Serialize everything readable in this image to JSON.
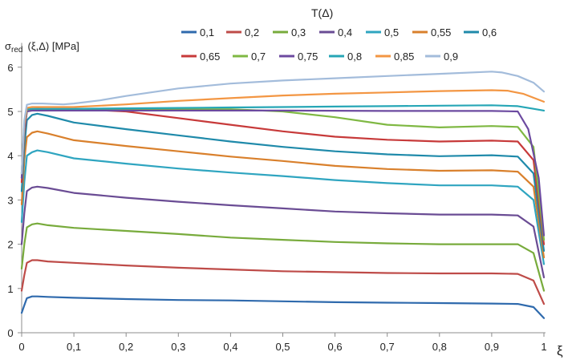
{
  "chart_data": {
    "type": "line",
    "legend_title": "T(Δ)",
    "ylabel_symbol": "σ",
    "ylabel_subscript": "red",
    "ylabel_rest": "(ξ,Δ) [MPa]",
    "xlabel": "ξ",
    "xlim": [
      0,
      1
    ],
    "ylim": [
      0,
      6.5
    ],
    "x_ticks": [
      "0",
      "0,1",
      "0,2",
      "0,3",
      "0,4",
      "0,5",
      "0,6",
      "0,7",
      "0,8",
      "0,9",
      "1"
    ],
    "y_ticks": [
      "0",
      "1",
      "2",
      "3",
      "4",
      "5",
      "6"
    ],
    "grid": "none",
    "legend_position": "top",
    "series": [
      {
        "name": "0,1",
        "color": "#2f6aad",
        "points": [
          [
            0,
            0.45
          ],
          [
            0.005,
            0.62
          ],
          [
            0.01,
            0.78
          ],
          [
            0.02,
            0.82
          ],
          [
            0.03,
            0.82
          ],
          [
            0.05,
            0.81
          ],
          [
            0.1,
            0.79
          ],
          [
            0.2,
            0.76
          ],
          [
            0.3,
            0.74
          ],
          [
            0.4,
            0.73
          ],
          [
            0.5,
            0.71
          ],
          [
            0.6,
            0.69
          ],
          [
            0.7,
            0.68
          ],
          [
            0.8,
            0.67
          ],
          [
            0.9,
            0.66
          ],
          [
            0.95,
            0.65
          ],
          [
            0.98,
            0.58
          ],
          [
            1,
            0.33
          ]
        ]
      },
      {
        "name": "0,2",
        "color": "#be4b48",
        "points": [
          [
            0,
            0.95
          ],
          [
            0.005,
            1.3
          ],
          [
            0.01,
            1.58
          ],
          [
            0.02,
            1.64
          ],
          [
            0.03,
            1.64
          ],
          [
            0.05,
            1.61
          ],
          [
            0.1,
            1.58
          ],
          [
            0.2,
            1.52
          ],
          [
            0.3,
            1.47
          ],
          [
            0.4,
            1.43
          ],
          [
            0.5,
            1.39
          ],
          [
            0.6,
            1.37
          ],
          [
            0.7,
            1.35
          ],
          [
            0.8,
            1.34
          ],
          [
            0.9,
            1.34
          ],
          [
            0.95,
            1.33
          ],
          [
            0.98,
            1.18
          ],
          [
            1,
            0.65
          ]
        ]
      },
      {
        "name": "0,3",
        "color": "#78ab3c",
        "points": [
          [
            0,
            1.45
          ],
          [
            0.005,
            2.0
          ],
          [
            0.01,
            2.38
          ],
          [
            0.02,
            2.45
          ],
          [
            0.03,
            2.47
          ],
          [
            0.05,
            2.43
          ],
          [
            0.1,
            2.37
          ],
          [
            0.2,
            2.3
          ],
          [
            0.3,
            2.23
          ],
          [
            0.4,
            2.15
          ],
          [
            0.5,
            2.1
          ],
          [
            0.6,
            2.05
          ],
          [
            0.7,
            2.02
          ],
          [
            0.8,
            2.0
          ],
          [
            0.9,
            2.0
          ],
          [
            0.95,
            2.0
          ],
          [
            0.98,
            1.8
          ],
          [
            1,
            0.95
          ]
        ]
      },
      {
        "name": "0,4",
        "color": "#6a4c94",
        "points": [
          [
            0,
            2.0
          ],
          [
            0.005,
            2.7
          ],
          [
            0.01,
            3.2
          ],
          [
            0.02,
            3.28
          ],
          [
            0.03,
            3.3
          ],
          [
            0.05,
            3.27
          ],
          [
            0.1,
            3.16
          ],
          [
            0.2,
            3.05
          ],
          [
            0.3,
            2.96
          ],
          [
            0.4,
            2.88
          ],
          [
            0.5,
            2.81
          ],
          [
            0.6,
            2.74
          ],
          [
            0.7,
            2.7
          ],
          [
            0.8,
            2.67
          ],
          [
            0.9,
            2.67
          ],
          [
            0.95,
            2.65
          ],
          [
            0.98,
            2.4
          ],
          [
            1,
            1.25
          ]
        ]
      },
      {
        "name": "0,5",
        "color": "#2fa5c0",
        "points": [
          [
            0,
            2.5
          ],
          [
            0.005,
            3.4
          ],
          [
            0.01,
            4.0
          ],
          [
            0.02,
            4.08
          ],
          [
            0.03,
            4.12
          ],
          [
            0.05,
            4.08
          ],
          [
            0.1,
            3.94
          ],
          [
            0.2,
            3.82
          ],
          [
            0.3,
            3.71
          ],
          [
            0.4,
            3.62
          ],
          [
            0.5,
            3.54
          ],
          [
            0.6,
            3.45
          ],
          [
            0.7,
            3.38
          ],
          [
            0.8,
            3.33
          ],
          [
            0.9,
            3.33
          ],
          [
            0.95,
            3.3
          ],
          [
            0.98,
            3.0
          ],
          [
            1,
            1.55
          ]
        ]
      },
      {
        "name": "0,55",
        "color": "#d9802c",
        "points": [
          [
            0,
            2.9
          ],
          [
            0.005,
            3.9
          ],
          [
            0.01,
            4.42
          ],
          [
            0.02,
            4.52
          ],
          [
            0.03,
            4.55
          ],
          [
            0.05,
            4.5
          ],
          [
            0.1,
            4.35
          ],
          [
            0.2,
            4.22
          ],
          [
            0.3,
            4.1
          ],
          [
            0.4,
            3.98
          ],
          [
            0.5,
            3.88
          ],
          [
            0.6,
            3.77
          ],
          [
            0.7,
            3.7
          ],
          [
            0.8,
            3.66
          ],
          [
            0.9,
            3.67
          ],
          [
            0.95,
            3.64
          ],
          [
            0.98,
            3.3
          ],
          [
            1,
            1.7
          ]
        ]
      },
      {
        "name": "0,6",
        "color": "#1f8aaa",
        "points": [
          [
            0,
            3.2
          ],
          [
            0.005,
            4.2
          ],
          [
            0.01,
            4.8
          ],
          [
            0.02,
            4.92
          ],
          [
            0.03,
            4.95
          ],
          [
            0.05,
            4.9
          ],
          [
            0.1,
            4.75
          ],
          [
            0.2,
            4.6
          ],
          [
            0.3,
            4.46
          ],
          [
            0.4,
            4.32
          ],
          [
            0.5,
            4.2
          ],
          [
            0.6,
            4.1
          ],
          [
            0.7,
            4.03
          ],
          [
            0.8,
            3.99
          ],
          [
            0.9,
            4.01
          ],
          [
            0.95,
            3.98
          ],
          [
            0.98,
            3.6
          ],
          [
            1,
            1.85
          ]
        ]
      },
      {
        "name": "0,65",
        "color": "#c73a3a",
        "points": [
          [
            0,
            3.4
          ],
          [
            0.005,
            4.5
          ],
          [
            0.01,
            5.0
          ],
          [
            0.02,
            5.05
          ],
          [
            0.03,
            5.06
          ],
          [
            0.05,
            5.05
          ],
          [
            0.1,
            5.05
          ],
          [
            0.2,
            5.0
          ],
          [
            0.3,
            4.85
          ],
          [
            0.4,
            4.7
          ],
          [
            0.5,
            4.55
          ],
          [
            0.6,
            4.43
          ],
          [
            0.7,
            4.36
          ],
          [
            0.8,
            4.32
          ],
          [
            0.9,
            4.34
          ],
          [
            0.95,
            4.32
          ],
          [
            0.98,
            3.9
          ],
          [
            1,
            2.0
          ]
        ]
      },
      {
        "name": "0,7",
        "color": "#7fb843",
        "points": [
          [
            0,
            3.5
          ],
          [
            0.005,
            4.6
          ],
          [
            0.01,
            5.0
          ],
          [
            0.02,
            5.05
          ],
          [
            0.03,
            5.05
          ],
          [
            0.1,
            5.05
          ],
          [
            0.2,
            5.05
          ],
          [
            0.3,
            5.05
          ],
          [
            0.4,
            5.05
          ],
          [
            0.5,
            5.0
          ],
          [
            0.6,
            4.87
          ],
          [
            0.7,
            4.7
          ],
          [
            0.8,
            4.64
          ],
          [
            0.9,
            4.67
          ],
          [
            0.95,
            4.65
          ],
          [
            0.98,
            4.2
          ],
          [
            1,
            2.1
          ]
        ]
      },
      {
        "name": "0,75",
        "color": "#6c4aa0",
        "points": [
          [
            0,
            3.5
          ],
          [
            0.005,
            4.6
          ],
          [
            0.01,
            5.0
          ],
          [
            0.02,
            5.02
          ],
          [
            0.03,
            5.02
          ],
          [
            0.1,
            5.02
          ],
          [
            0.3,
            5.02
          ],
          [
            0.5,
            5.02
          ],
          [
            0.7,
            5.01
          ],
          [
            0.9,
            5.01
          ],
          [
            0.95,
            5.0
          ],
          [
            0.97,
            4.6
          ],
          [
            0.99,
            3.5
          ],
          [
            1,
            2.2
          ]
        ]
      },
      {
        "name": "0,8",
        "color": "#26a6b6",
        "points": [
          [
            0,
            3.6
          ],
          [
            0.005,
            4.7
          ],
          [
            0.01,
            5.05
          ],
          [
            0.02,
            5.06
          ],
          [
            0.03,
            5.06
          ],
          [
            0.1,
            5.06
          ],
          [
            0.2,
            5.07
          ],
          [
            0.3,
            5.08
          ],
          [
            0.4,
            5.09
          ],
          [
            0.5,
            5.1
          ],
          [
            0.6,
            5.11
          ],
          [
            0.7,
            5.12
          ],
          [
            0.8,
            5.13
          ],
          [
            0.9,
            5.14
          ],
          [
            0.95,
            5.12
          ],
          [
            0.98,
            5.06
          ],
          [
            1,
            5.02
          ]
        ]
      },
      {
        "name": "0,85",
        "color": "#f39643",
        "points": [
          [
            0,
            3.6
          ],
          [
            0.005,
            4.7
          ],
          [
            0.01,
            5.08
          ],
          [
            0.02,
            5.1
          ],
          [
            0.03,
            5.1
          ],
          [
            0.05,
            5.1
          ],
          [
            0.1,
            5.1
          ],
          [
            0.2,
            5.16
          ],
          [
            0.3,
            5.24
          ],
          [
            0.4,
            5.3
          ],
          [
            0.5,
            5.36
          ],
          [
            0.6,
            5.4
          ],
          [
            0.7,
            5.43
          ],
          [
            0.8,
            5.46
          ],
          [
            0.9,
            5.48
          ],
          [
            0.93,
            5.47
          ],
          [
            0.96,
            5.4
          ],
          [
            1,
            5.22
          ]
        ]
      },
      {
        "name": "0,9",
        "color": "#a3bcdb",
        "points": [
          [
            0,
            3.6
          ],
          [
            0.005,
            4.8
          ],
          [
            0.01,
            5.15
          ],
          [
            0.02,
            5.18
          ],
          [
            0.04,
            5.18
          ],
          [
            0.08,
            5.16
          ],
          [
            0.1,
            5.18
          ],
          [
            0.15,
            5.25
          ],
          [
            0.2,
            5.35
          ],
          [
            0.3,
            5.52
          ],
          [
            0.4,
            5.63
          ],
          [
            0.5,
            5.7
          ],
          [
            0.6,
            5.75
          ],
          [
            0.7,
            5.8
          ],
          [
            0.8,
            5.85
          ],
          [
            0.9,
            5.9
          ],
          [
            0.92,
            5.88
          ],
          [
            0.95,
            5.8
          ],
          [
            0.98,
            5.65
          ],
          [
            1,
            5.45
          ]
        ]
      }
    ]
  }
}
